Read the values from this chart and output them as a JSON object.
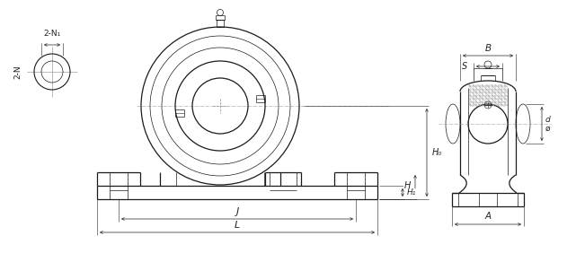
{
  "bg_color": "#ffffff",
  "line_color": "#1a1a1a",
  "dim_color": "#222222",
  "fig_width": 6.41,
  "fig_height": 2.92,
  "labels": {
    "two_N": "2-N",
    "two_N1": "2-N₁",
    "H0": "H₀",
    "H": "H",
    "H1": "H₁",
    "J": "J",
    "L": "L",
    "B": "B",
    "S": "S",
    "A": "A",
    "d_phi": "ø",
    "d_label": "d"
  }
}
